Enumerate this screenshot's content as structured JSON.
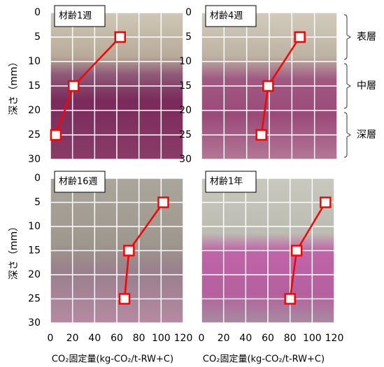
{
  "chart_data": [
    {
      "type": "line",
      "title": "材齢1週",
      "x": [
        63,
        21,
        5
      ],
      "y": [
        5,
        15,
        25
      ],
      "color": "#ff0000",
      "xlim": [
        0,
        120
      ],
      "xticks": [
        0,
        20,
        40,
        60,
        80,
        100,
        120
      ],
      "xtick_labels": false,
      "ylim": [
        30,
        0
      ],
      "yticks": [
        0,
        5,
        10,
        15,
        20,
        25,
        30
      ],
      "ylabel": "深さ（mm）",
      "grid": true
    },
    {
      "type": "line",
      "title": "材齢4週",
      "x": [
        87,
        59,
        53
      ],
      "y": [
        5,
        15,
        25
      ],
      "color": "#ff0000",
      "xlim": [
        0,
        120
      ],
      "xticks": [
        0,
        20,
        40,
        60,
        80,
        100,
        120
      ],
      "xtick_labels": false,
      "ylim": [
        30,
        0
      ],
      "yticks": [
        0,
        5,
        10,
        15,
        20,
        25,
        30
      ],
      "grid": true,
      "annotations": [
        {
          "text": "表層",
          "range": [
            0,
            10
          ]
        },
        {
          "text": "中層",
          "range": [
            10,
            20
          ]
        },
        {
          "text": "深層",
          "range": [
            20,
            30
          ]
        }
      ]
    },
    {
      "type": "line",
      "title": "材齢16週",
      "x": [
        102,
        71,
        67
      ],
      "y": [
        5,
        15,
        25
      ],
      "color": "#ff0000",
      "xlim": [
        0,
        120
      ],
      "xticks": [
        0,
        20,
        40,
        60,
        80,
        100,
        120
      ],
      "ylim": [
        30,
        0
      ],
      "yticks": [
        0,
        5,
        10,
        15,
        20,
        25,
        30
      ],
      "ylabel": "深さ（mm）",
      "xlabel": "CO₂固定量(kg-CO₂/t-RW+C)",
      "grid": true
    },
    {
      "type": "line",
      "title": "材齢1年",
      "x": [
        112,
        86,
        80
      ],
      "y": [
        5,
        15,
        25
      ],
      "color": "#ff0000",
      "xlim": [
        0,
        120
      ],
      "xticks": [
        0,
        20,
        40,
        60,
        80,
        100,
        120
      ],
      "ylim": [
        30,
        0
      ],
      "yticks": [
        0,
        5,
        10,
        15,
        20,
        25,
        30
      ],
      "ytick_labels": false,
      "xlabel": "CO₂固定量(kg-CO₂/t-RW+C)",
      "grid": true
    }
  ]
}
